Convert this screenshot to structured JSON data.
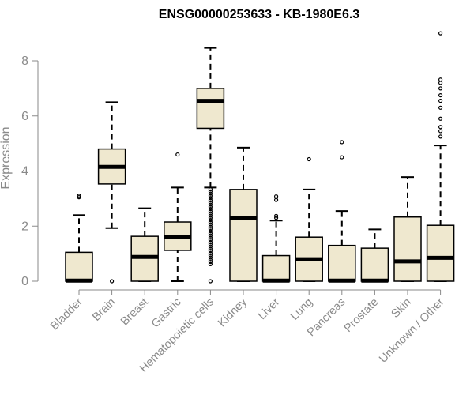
{
  "chart_data": {
    "type": "boxplot",
    "title": "ENSG00000253633 - KB-1980E6.3",
    "xlabel": "",
    "ylabel": "Expression",
    "ylim": [
      0,
      9
    ],
    "yticks": [
      0,
      2,
      4,
      6,
      8
    ],
    "colors": {
      "box_fill": "#efe8cf",
      "box_stroke": "#000000",
      "axis": "#8a8a8a"
    },
    "categories": [
      "Bladder",
      "Brain",
      "Breast",
      "Gastric",
      "Hematopoietic cells",
      "Kidney",
      "Liver",
      "Lung",
      "Pancreas",
      "Prostate",
      "Skin",
      "Unknown / Other"
    ],
    "boxes": [
      {
        "name": "Bladder",
        "min": 0,
        "q1": 0,
        "median": 0.02,
        "q3": 1.05,
        "max": 2.4,
        "outliers": [
          3.05,
          3.1
        ]
      },
      {
        "name": "Brain",
        "min": 1.93,
        "q1": 3.53,
        "median": 4.15,
        "q3": 4.8,
        "max": 6.5,
        "outliers": [
          0
        ]
      },
      {
        "name": "Breast",
        "min": 0,
        "q1": 0,
        "median": 0.88,
        "q3": 1.63,
        "max": 2.65,
        "outliers": []
      },
      {
        "name": "Gastric",
        "min": 0,
        "q1": 1.12,
        "median": 1.62,
        "q3": 2.15,
        "max": 3.4,
        "outliers": [
          4.6
        ]
      },
      {
        "name": "Hematopoietic cells",
        "min": 3.4,
        "q1": 5.55,
        "median": 6.55,
        "q3": 7.0,
        "max": 8.47,
        "outliers": [
          0,
          0.62,
          0.7,
          0.78,
          0.86,
          0.94,
          1.02,
          1.1,
          1.18,
          1.26,
          1.34,
          1.42,
          1.5,
          1.58,
          1.66,
          1.74,
          1.82,
          1.9,
          1.98,
          2.06,
          2.14,
          2.22,
          2.3,
          2.38,
          2.46,
          2.54,
          2.62,
          2.7,
          2.78,
          2.86,
          2.94,
          3.02,
          3.1,
          3.18,
          3.26,
          3.34
        ]
      },
      {
        "name": "Kidney",
        "min": 0,
        "q1": 0,
        "median": 2.3,
        "q3": 3.33,
        "max": 4.85,
        "outliers": []
      },
      {
        "name": "Liver",
        "min": 0,
        "q1": 0,
        "median": 0.02,
        "q3": 0.93,
        "max": 2.2,
        "outliers": [
          2.3,
          2.37,
          2.95,
          3.08
        ]
      },
      {
        "name": "Lung",
        "min": 0,
        "q1": 0,
        "median": 0.8,
        "q3": 1.6,
        "max": 3.33,
        "outliers": [
          4.43
        ]
      },
      {
        "name": "Pancreas",
        "min": 0,
        "q1": 0,
        "median": 0.02,
        "q3": 1.3,
        "max": 2.55,
        "outliers": [
          4.5,
          5.05
        ]
      },
      {
        "name": "Prostate",
        "min": 0,
        "q1": 0,
        "median": 0.02,
        "q3": 1.2,
        "max": 1.88,
        "outliers": []
      },
      {
        "name": "Skin",
        "min": 0,
        "q1": 0,
        "median": 0.72,
        "q3": 2.33,
        "max": 3.78,
        "outliers": []
      },
      {
        "name": "Unknown / Other",
        "min": 0,
        "q1": 0,
        "median": 0.85,
        "q3": 2.03,
        "max": 4.93,
        "outliers": [
          5.25,
          5.45,
          5.6,
          5.9,
          6.3,
          6.55,
          6.75,
          7.0,
          7.2,
          7.32,
          9.0
        ]
      }
    ]
  }
}
